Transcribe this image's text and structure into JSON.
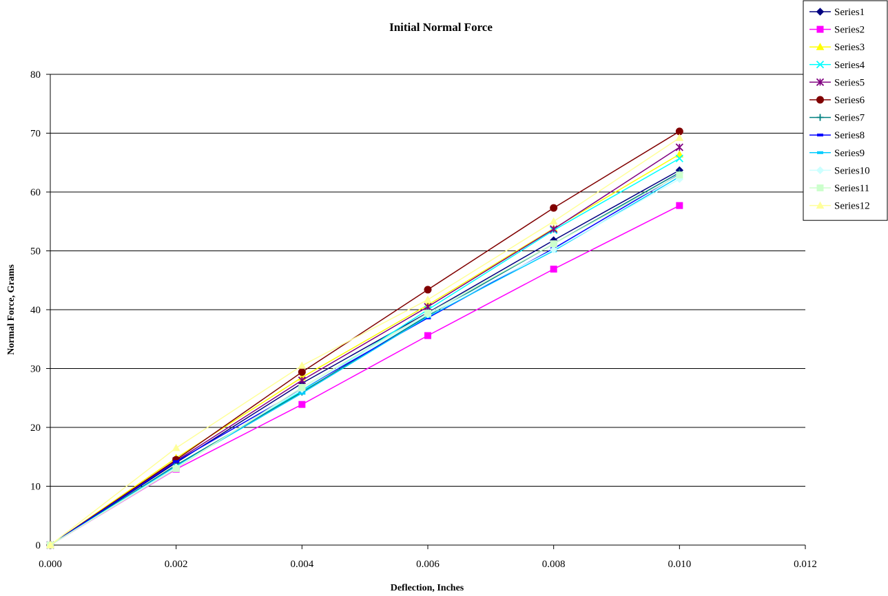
{
  "chart_data": {
    "type": "line",
    "title": "Initial Normal Force",
    "xlabel": "Deflection, Inches",
    "ylabel": "Normal Force, Grams",
    "xlim": [
      0.0,
      0.012
    ],
    "ylim": [
      0,
      80
    ],
    "x_ticks": [
      "0.000",
      "0.002",
      "0.004",
      "0.006",
      "0.008",
      "0.010",
      "0.012"
    ],
    "y_ticks": [
      "0",
      "10",
      "20",
      "30",
      "40",
      "50",
      "60",
      "70",
      "80"
    ],
    "grid": "horizontal major gridlines",
    "legend_position": "top-right",
    "x": [
      0.0,
      0.002,
      0.004,
      0.006,
      0.008,
      0.01
    ],
    "series": [
      {
        "name": "Series1",
        "color": "#000080",
        "marker": "diamond",
        "values": [
          0,
          14.0,
          27.5,
          39.5,
          51.8,
          63.7
        ]
      },
      {
        "name": "Series2",
        "color": "#FF00FF",
        "marker": "square",
        "values": [
          0,
          12.9,
          23.9,
          35.6,
          46.9,
          57.7
        ]
      },
      {
        "name": "Series3",
        "color": "#FFFF00",
        "marker": "triangle",
        "values": [
          0,
          14.8,
          28.5,
          40.8,
          53.8,
          66.4
        ]
      },
      {
        "name": "Series4",
        "color": "#00FFFF",
        "marker": "x",
        "values": [
          0,
          13.5,
          26.2,
          40.0,
          53.5,
          65.7
        ]
      },
      {
        "name": "Series5",
        "color": "#800080",
        "marker": "star",
        "values": [
          0,
          14.3,
          28.0,
          40.5,
          53.7,
          67.6
        ]
      },
      {
        "name": "Series6",
        "color": "#800000",
        "marker": "circle",
        "values": [
          0,
          14.5,
          29.4,
          43.4,
          57.3,
          70.3
        ]
      },
      {
        "name": "Series7",
        "color": "#008080",
        "marker": "plus",
        "values": [
          0,
          13.6,
          26.0,
          39.0,
          51.2,
          63.3
        ]
      },
      {
        "name": "Series8",
        "color": "#0000FF",
        "marker": "dash",
        "values": [
          0,
          14.2,
          26.5,
          38.6,
          50.4,
          63.0
        ]
      },
      {
        "name": "Series9",
        "color": "#00CCFF",
        "marker": "dash",
        "values": [
          0,
          13.4,
          25.8,
          38.8,
          50.0,
          62.6
        ]
      },
      {
        "name": "Series10",
        "color": "#CCFFFF",
        "marker": "diamond",
        "values": [
          0,
          13.2,
          26.5,
          39.2,
          50.2,
          62.2
        ]
      },
      {
        "name": "Series11",
        "color": "#CCFFCC",
        "marker": "square",
        "values": [
          0,
          13.0,
          26.8,
          39.4,
          51.2,
          62.9
        ]
      },
      {
        "name": "Series12",
        "color": "#FFFF99",
        "marker": "triangle",
        "values": [
          0,
          16.5,
          30.5,
          41.7,
          55.0,
          69.2
        ]
      }
    ]
  }
}
